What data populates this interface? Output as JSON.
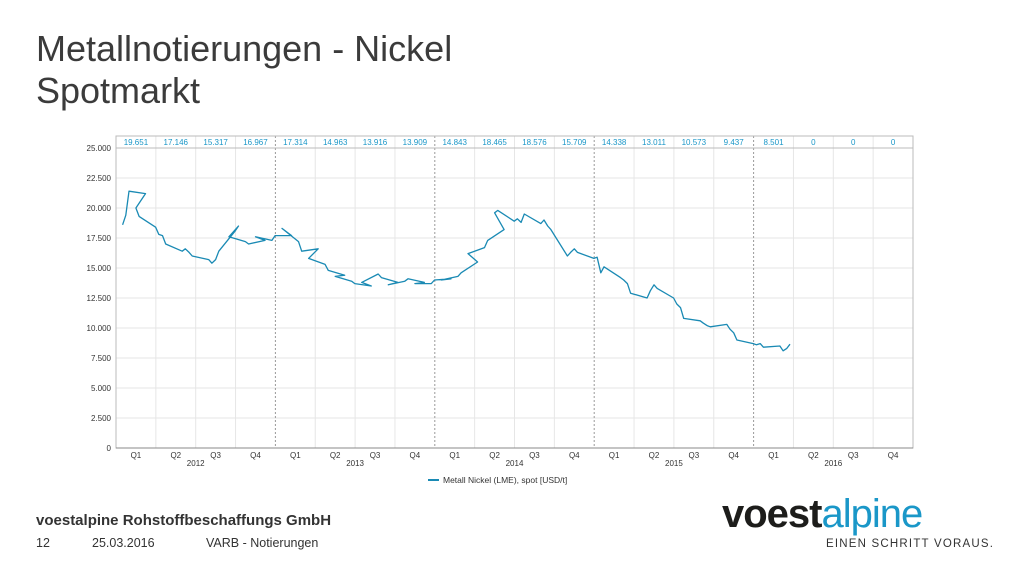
{
  "title": {
    "line1": "Metallnotierungen - Nickel",
    "line2": "Spotmarkt"
  },
  "footer": {
    "company": "voestalpine Rohstoffbeschaffungs GmbH",
    "page_number": "12",
    "date": "25.03.2016",
    "section": "VARB - Notierungen"
  },
  "logo": {
    "part1": "voest",
    "part2": "alpine",
    "slogan": "EINEN SCHRITT VORAUS."
  },
  "colors": {
    "series": "#1a8ab4",
    "grid": "#e6e6e6",
    "header_text": "#1a97c8",
    "brand_blue": "#1a97c8"
  },
  "chart_data": {
    "type": "line",
    "ylim": [
      0,
      25000
    ],
    "yticks": [
      "0",
      "2.500",
      "5.000",
      "7.500",
      "10.000",
      "12.500",
      "15.000",
      "17.500",
      "20.000",
      "22.500",
      "25.000"
    ],
    "quarters": [
      "Q1",
      "Q2",
      "Q3",
      "Q4",
      "Q1",
      "Q2",
      "Q3",
      "Q4",
      "Q1",
      "Q2",
      "Q3",
      "Q4",
      "Q1",
      "Q2",
      "Q3",
      "Q4",
      "Q1",
      "Q2",
      "Q3",
      "Q4"
    ],
    "years": [
      "2012",
      "2013",
      "2014",
      "2015",
      "2016"
    ],
    "quarter_averages": [
      "19.651",
      "17.146",
      "15.317",
      "16.967",
      "17.314",
      "14.963",
      "13.916",
      "13.909",
      "14.843",
      "18.465",
      "18.576",
      "15.709",
      "14.338",
      "13.011",
      "10.573",
      "9.437",
      "8.501",
      "0",
      "0",
      "0"
    ],
    "legend": "Metall Nickel (LME), spot [USD/t]",
    "grid": true,
    "series": [
      {
        "name": "Metall Nickel (LME), spot [USD/t]",
        "x": [
          "2012-01",
          "2012-01",
          "2012-01",
          "2012-02",
          "2012-02",
          "2012-02",
          "2012-03",
          "2012-03",
          "2012-04",
          "2012-04",
          "2012-05",
          "2012-05",
          "2012-06",
          "2012-06",
          "2012-07",
          "2012-07",
          "2012-08",
          "2012-08",
          "2012-09",
          "2012-09",
          "2012-09",
          "2012-10",
          "2012-10",
          "2012-11",
          "2012-11",
          "2012-12",
          "2012-12",
          "2013-01",
          "2013-01",
          "2013-02",
          "2013-02",
          "2013-03",
          "2013-03",
          "2013-04",
          "2013-04",
          "2013-05",
          "2013-05",
          "2013-06",
          "2013-06",
          "2013-07",
          "2013-07",
          "2013-08",
          "2013-08",
          "2013-09",
          "2013-09",
          "2013-10",
          "2013-10",
          "2013-11",
          "2013-11",
          "2013-12",
          "2013-12",
          "2014-01",
          "2014-01",
          "2014-02",
          "2014-02",
          "2014-03",
          "2014-03",
          "2014-04",
          "2014-04",
          "2014-05",
          "2014-05",
          "2014-05",
          "2014-06",
          "2014-06",
          "2014-07",
          "2014-07",
          "2014-08",
          "2014-08",
          "2014-09",
          "2014-09",
          "2014-10",
          "2014-10",
          "2014-11",
          "2014-11",
          "2014-12",
          "2014-12",
          "2015-01",
          "2015-01",
          "2015-02",
          "2015-02",
          "2015-03",
          "2015-03",
          "2015-04",
          "2015-04",
          "2015-05",
          "2015-05",
          "2015-06",
          "2015-06",
          "2015-07",
          "2015-07",
          "2015-08",
          "2015-08",
          "2015-09",
          "2015-09",
          "2015-10",
          "2015-10",
          "2015-11",
          "2015-11",
          "2015-12",
          "2015-12",
          "2016-01",
          "2016-01",
          "2016-02",
          "2016-02",
          "2016-03",
          "2016-03"
        ],
        "y": [
          18600,
          19400,
          21400,
          21200,
          20000,
          19300,
          18400,
          17800,
          17700,
          17000,
          16400,
          16600,
          16300,
          16000,
          15700,
          15400,
          15700,
          16400,
          18100,
          18500,
          17600,
          17200,
          17000,
          17300,
          17600,
          17300,
          17700,
          17700,
          18300,
          17200,
          16400,
          16600,
          15800,
          15300,
          14800,
          14400,
          14300,
          13900,
          13700,
          13500,
          13800,
          14500,
          14200,
          13800,
          13600,
          13900,
          14100,
          13800,
          13700,
          13700,
          14000,
          14100,
          14000,
          14300,
          14600,
          15500,
          16200,
          16700,
          17300,
          18200,
          19600,
          19800,
          18900,
          19100,
          18800,
          19500,
          18700,
          19000,
          18500,
          18200,
          16000,
          16300,
          16600,
          16300,
          15800,
          15900,
          14600,
          15100,
          14200,
          14000,
          13700,
          12900,
          12500,
          13100,
          13600,
          13300,
          12500,
          12000,
          11700,
          10800,
          10600,
          10400,
          10200,
          10100,
          10300,
          9900,
          9600,
          9000,
          8700,
          8600,
          8700,
          8400,
          8500,
          8100,
          8300,
          8650
        ]
      }
    ]
  }
}
